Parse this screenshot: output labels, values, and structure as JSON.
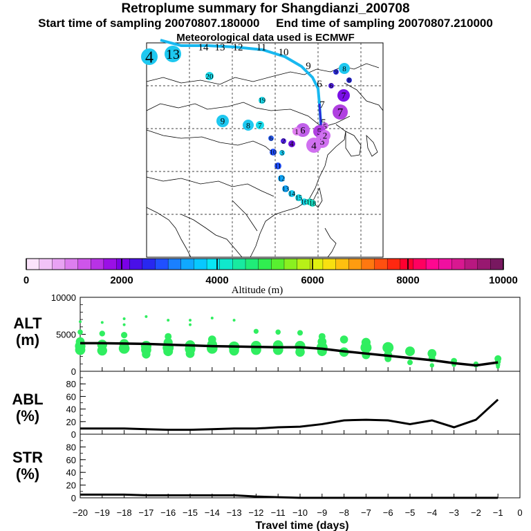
{
  "header": {
    "title": "Retroplume summary for Shangdianzi_200708",
    "line2": "Start time of sampling 20070807.180000     End time of sampling 20070807.210000",
    "line3": "Meteorological data used is ECMWF"
  },
  "colorbar": {
    "ticks": [
      "0",
      "2000",
      "4000",
      "6000",
      "8000",
      "10000"
    ],
    "label": "Altitude (m)",
    "colors": [
      "#fbe3fb",
      "#f2c3f7",
      "#e8a2f3",
      "#dd7eef",
      "#ce55ea",
      "#b832e6",
      "#9a10e6",
      "#7a00e6",
      "#4a10e8",
      "#2828f0",
      "#2050ff",
      "#1a80ff",
      "#10a8ff",
      "#08c8ff",
      "#08e6f5",
      "#10e8cc",
      "#18eaa0",
      "#20ec78",
      "#30ee50",
      "#58f030",
      "#8af020",
      "#b8f018",
      "#e0f010",
      "#f8e010",
      "#ffc010",
      "#ff9c10",
      "#ff7810",
      "#ff5010",
      "#ff2810",
      "#ff0030",
      "#ff0060",
      "#ff0890",
      "#f010a0",
      "#d81890",
      "#b81880",
      "#981870",
      "#781860"
    ]
  },
  "map": {
    "trajectory_labels": [
      "14",
      "13",
      "12",
      "11",
      "10",
      "9",
      "6",
      "7",
      "5"
    ],
    "clusters": [
      {
        "label": "4",
        "color": "#1ec8f0"
      },
      {
        "label": "13",
        "color": "#1ec8f0"
      },
      {
        "label": "20",
        "color": "#18d8e8"
      },
      {
        "label": "19",
        "color": "#18d8e8"
      },
      {
        "label": "9",
        "color": "#1ec8f0"
      },
      {
        "label": "8",
        "color": "#1ec8f0"
      },
      {
        "label": "7",
        "color": "#18d8e8"
      },
      {
        "label": "8",
        "color": "#1ec8f0"
      },
      {
        "label": "9",
        "color": "#3030e8"
      },
      {
        "label": "8",
        "color": "#2a2ad8"
      },
      {
        "label": "7",
        "color": "#7a10e6"
      },
      {
        "label": "7",
        "color": "#b040e0"
      },
      {
        "label": "6",
        "color": "#5020e0"
      },
      {
        "label": "5",
        "color": "#d070f0"
      },
      {
        "label": "6",
        "color": "#c060ea"
      },
      {
        "label": "5",
        "color": "#b040e0"
      },
      {
        "label": "4",
        "color": "#d070f0"
      },
      {
        "label": "3",
        "color": "#d070f0"
      },
      {
        "label": "2",
        "color": "#d070f0"
      },
      {
        "label": "1",
        "color": "#e080f0"
      },
      {
        "label": "4",
        "color": "#6a10d8"
      },
      {
        "label": "2",
        "color": "#5020e0"
      },
      {
        "label": "6",
        "color": "#2a60ff"
      },
      {
        "label": "10",
        "color": "#2050ff"
      },
      {
        "label": "3",
        "color": "#18c8f0"
      },
      {
        "label": "11",
        "color": "#2050ff"
      },
      {
        "label": "12",
        "color": "#10a8ff"
      },
      {
        "label": "13",
        "color": "#10a8ff"
      },
      {
        "label": "14",
        "color": "#18c8f0"
      },
      {
        "label": "15",
        "color": "#18d8e8"
      },
      {
        "label": "16",
        "color": "#18d8e8"
      },
      {
        "label": "17",
        "color": "#18e8cc"
      },
      {
        "label": "18",
        "color": "#18e8cc"
      }
    ]
  },
  "chart_data": [
    {
      "type": "scatter",
      "panel_label": "ALT\n(m)",
      "ylabel": "ALT (m)",
      "ylim": [
        0,
        10000
      ],
      "ytick_labels": [
        "10000",
        "5000",
        "0"
      ],
      "x": [
        -20,
        -19,
        -18,
        -17,
        -16,
        -15,
        -14,
        -13,
        -12,
        -11,
        -10,
        -9,
        -8,
        -7,
        -6,
        -5,
        -4,
        -3,
        -2,
        -1
      ],
      "mean_line": [
        3800,
        3800,
        3750,
        3700,
        3600,
        3500,
        3400,
        3350,
        3300,
        3250,
        3250,
        3050,
        2700,
        2400,
        2100,
        1800,
        1500,
        1100,
        800,
        1200
      ],
      "points": [
        [
          -20,
          2900
        ],
        [
          -20,
          3400
        ],
        [
          -20,
          4000
        ],
        [
          -20,
          5300
        ],
        [
          -20,
          6700
        ],
        [
          -19,
          2800
        ],
        [
          -19,
          3600
        ],
        [
          -19,
          5100
        ],
        [
          -19,
          6600
        ],
        [
          -18,
          3100
        ],
        [
          -18,
          3700
        ],
        [
          -18,
          4900
        ],
        [
          -18,
          6300
        ],
        [
          -18,
          7100
        ],
        [
          -17,
          2900
        ],
        [
          -17,
          3400
        ],
        [
          -17,
          2300
        ],
        [
          -17,
          7400
        ],
        [
          -16,
          2700
        ],
        [
          -16,
          3200
        ],
        [
          -16,
          3900
        ],
        [
          -16,
          4700
        ],
        [
          -16,
          6900
        ],
        [
          -15,
          3000
        ],
        [
          -15,
          3500
        ],
        [
          -15,
          2400
        ],
        [
          -15,
          6300
        ],
        [
          -15,
          6900
        ],
        [
          -14,
          3100
        ],
        [
          -14,
          3600
        ],
        [
          -14,
          4300
        ],
        [
          -14,
          7200
        ],
        [
          -13,
          2800
        ],
        [
          -13,
          3300
        ],
        [
          -13,
          6900
        ],
        [
          -12,
          2900
        ],
        [
          -12,
          3400
        ],
        [
          -12,
          5400
        ],
        [
          -11,
          2900
        ],
        [
          -11,
          3500
        ],
        [
          -11,
          5300
        ],
        [
          -10,
          2600
        ],
        [
          -10,
          3400
        ],
        [
          -10,
          5200
        ],
        [
          -9,
          2700
        ],
        [
          -9,
          3200
        ],
        [
          -9,
          4000
        ],
        [
          -9,
          4700
        ],
        [
          -8,
          2600
        ],
        [
          -8,
          4300
        ],
        [
          -7,
          2200
        ],
        [
          -7,
          3200
        ],
        [
          -7,
          3900
        ],
        [
          -6,
          1700
        ],
        [
          -6,
          2200
        ],
        [
          -6,
          3200
        ],
        [
          -5,
          1200
        ],
        [
          -5,
          2700
        ],
        [
          -4,
          800
        ],
        [
          -4,
          1700
        ],
        [
          -4,
          2400
        ],
        [
          -3,
          900
        ],
        [
          -3,
          1400
        ],
        [
          -2,
          800
        ],
        [
          -2,
          1000
        ],
        [
          -1,
          600
        ],
        [
          -1,
          900
        ],
        [
          -1,
          1300
        ],
        [
          -1,
          1700
        ]
      ]
    },
    {
      "type": "line",
      "panel_label": "ABL\n(%)",
      "ylabel": "ABL (%)",
      "ylim": [
        0,
        100
      ],
      "ytick_labels": [
        "80",
        "60",
        "40",
        "20",
        "0"
      ],
      "x": [
        -20,
        -19,
        -18,
        -17,
        -16,
        -15,
        -14,
        -13,
        -12,
        -11,
        -10,
        -9,
        -8,
        -7,
        -6,
        -5,
        -4,
        -3,
        -2,
        -1
      ],
      "values": [
        9,
        9,
        9,
        8,
        7,
        7,
        8,
        9,
        9,
        11,
        12,
        16,
        22,
        23,
        22,
        16,
        22,
        11,
        23,
        55
      ]
    },
    {
      "type": "line",
      "panel_label": "STR\n(%)",
      "ylabel": "STR (%)",
      "ylim": [
        0,
        100
      ],
      "ytick_labels": [
        "80",
        "60",
        "40",
        "20",
        "0"
      ],
      "x": [
        -20,
        -19,
        -18,
        -17,
        -16,
        -15,
        -14,
        -13,
        -12,
        -11,
        -10,
        -9,
        -8,
        -7,
        -6,
        -5,
        -4,
        -3,
        -2,
        -1
      ],
      "values": [
        5,
        5,
        5,
        4,
        4,
        4,
        4,
        4,
        2,
        1,
        0,
        0,
        0,
        0,
        0,
        0,
        0,
        0,
        0,
        0
      ]
    }
  ],
  "xaxis": {
    "label": "Travel time (days)",
    "tick_labels": [
      "−20",
      "−19",
      "−18",
      "−17",
      "−16",
      "−15",
      "−14",
      "−13",
      "−12",
      "−11",
      "−10",
      "−9",
      "−8",
      "−7",
      "−6",
      "−5",
      "−4",
      "−3",
      "−2",
      "−1",
      "0"
    ]
  }
}
